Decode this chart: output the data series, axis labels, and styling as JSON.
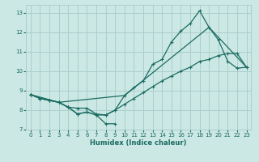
{
  "xlabel": "Humidex (Indice chaleur)",
  "bg_color": "#cce8e4",
  "grid_color": "#aacfcb",
  "line_color": "#1a6b62",
  "xlim": [
    -0.5,
    23.5
  ],
  "ylim": [
    7,
    13.4
  ],
  "xticks": [
    0,
    1,
    2,
    3,
    4,
    5,
    6,
    7,
    8,
    9,
    10,
    11,
    12,
    13,
    14,
    15,
    16,
    17,
    18,
    19,
    20,
    21,
    22,
    23
  ],
  "yticks": [
    7,
    8,
    9,
    10,
    11,
    12,
    13
  ],
  "line1_x": [
    0,
    1,
    2,
    3,
    4,
    5,
    6,
    7,
    8,
    9,
    10,
    11,
    12,
    13,
    14,
    15,
    16,
    17,
    18,
    19,
    20,
    21,
    22,
    23
  ],
  "line1_y": [
    8.8,
    8.6,
    8.5,
    8.4,
    8.15,
    7.8,
    7.9,
    7.75,
    7.75,
    8.0,
    8.75,
    9.15,
    9.5,
    10.35,
    10.6,
    11.5,
    12.05,
    12.45,
    13.1,
    12.25,
    11.6,
    10.5,
    10.15,
    10.2
  ],
  "line2_x": [
    0,
    1,
    2,
    3,
    4,
    5,
    6,
    7,
    8,
    9,
    10,
    11,
    12,
    13,
    14,
    15,
    16,
    17,
    18,
    19,
    20,
    21,
    22,
    23
  ],
  "line2_y": [
    8.8,
    8.6,
    8.5,
    8.4,
    8.15,
    8.1,
    8.1,
    7.8,
    7.75,
    8.0,
    8.3,
    8.6,
    8.9,
    9.2,
    9.5,
    9.75,
    10.0,
    10.2,
    10.5,
    10.6,
    10.8,
    10.9,
    10.9,
    10.2
  ],
  "line3_x": [
    0,
    3,
    10,
    19,
    23
  ],
  "line3_y": [
    8.8,
    8.4,
    8.75,
    12.25,
    10.2
  ],
  "line_bottom_x": [
    0,
    1,
    2,
    3,
    4,
    5,
    6,
    7,
    8,
    9
  ],
  "line_bottom_y": [
    8.8,
    8.6,
    8.5,
    8.4,
    8.15,
    7.8,
    7.9,
    7.75,
    7.3,
    7.3
  ]
}
